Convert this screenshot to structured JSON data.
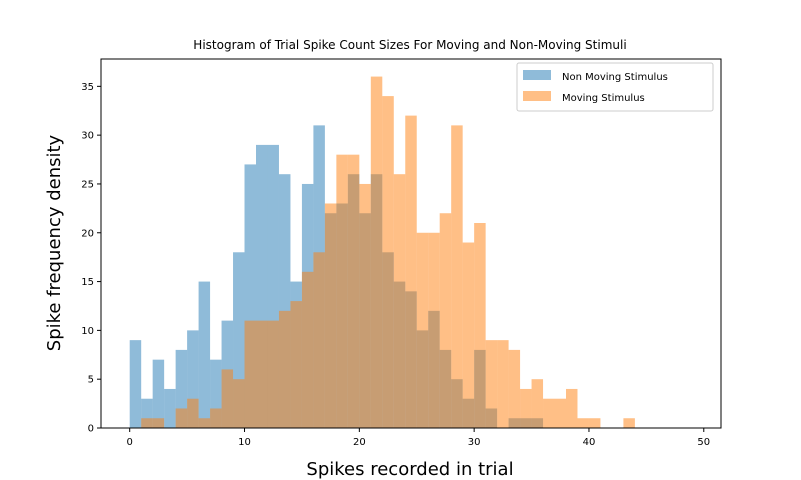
{
  "chart_data": {
    "type": "histogram",
    "title": "Histogram of Trial Spike Count Sizes For Moving and Non-Moving Stimuli",
    "xlabel": "Spikes recorded in trial",
    "ylabel": "Spike frequency density",
    "xlim": [
      -2.5,
      51.5
    ],
    "ylim": [
      0,
      37.8
    ],
    "xticks": [
      0,
      10,
      20,
      30,
      40,
      50
    ],
    "yticks": [
      0,
      5,
      10,
      15,
      20,
      25,
      30,
      35
    ],
    "grid": false,
    "legend_position": "top-right",
    "bin_width": 1,
    "series": [
      {
        "name": "Non Moving Stimulus",
        "color": "#1f77b4",
        "opacity": 0.5,
        "bin_starts": [
          0,
          1,
          2,
          3,
          4,
          5,
          6,
          7,
          8,
          9,
          10,
          11,
          12,
          13,
          14,
          15,
          16,
          17,
          18,
          19,
          20,
          21,
          22,
          23,
          24,
          25,
          26,
          27,
          28,
          29,
          30,
          31,
          32,
          33,
          34,
          35
        ],
        "counts": [
          9,
          3,
          7,
          4,
          8,
          10,
          15,
          7,
          11,
          18,
          27,
          29,
          29,
          26,
          15,
          25,
          31,
          22,
          23,
          26,
          22,
          26,
          18,
          15,
          14,
          10,
          12,
          8,
          5,
          3,
          8,
          2,
          0,
          1,
          1,
          1
        ]
      },
      {
        "name": "Moving Stimulus",
        "color": "#ff7f0e",
        "opacity": 0.5,
        "bin_starts": [
          1,
          2,
          3,
          4,
          5,
          6,
          7,
          8,
          9,
          10,
          11,
          12,
          13,
          14,
          15,
          16,
          17,
          18,
          19,
          20,
          21,
          22,
          23,
          24,
          25,
          26,
          27,
          28,
          29,
          30,
          31,
          32,
          33,
          34,
          35,
          36,
          37,
          38,
          39,
          40,
          41,
          42,
          43,
          44
        ],
        "counts": [
          1,
          1,
          0,
          2,
          3,
          1,
          2,
          6,
          5,
          11,
          11,
          11,
          12,
          13,
          16,
          18,
          23,
          28,
          28,
          25,
          36,
          34,
          26,
          32,
          20,
          20,
          22,
          31,
          19,
          21,
          9,
          9,
          8,
          4,
          5,
          3,
          3,
          4,
          1,
          1,
          0,
          0,
          1,
          0
        ]
      }
    ]
  }
}
